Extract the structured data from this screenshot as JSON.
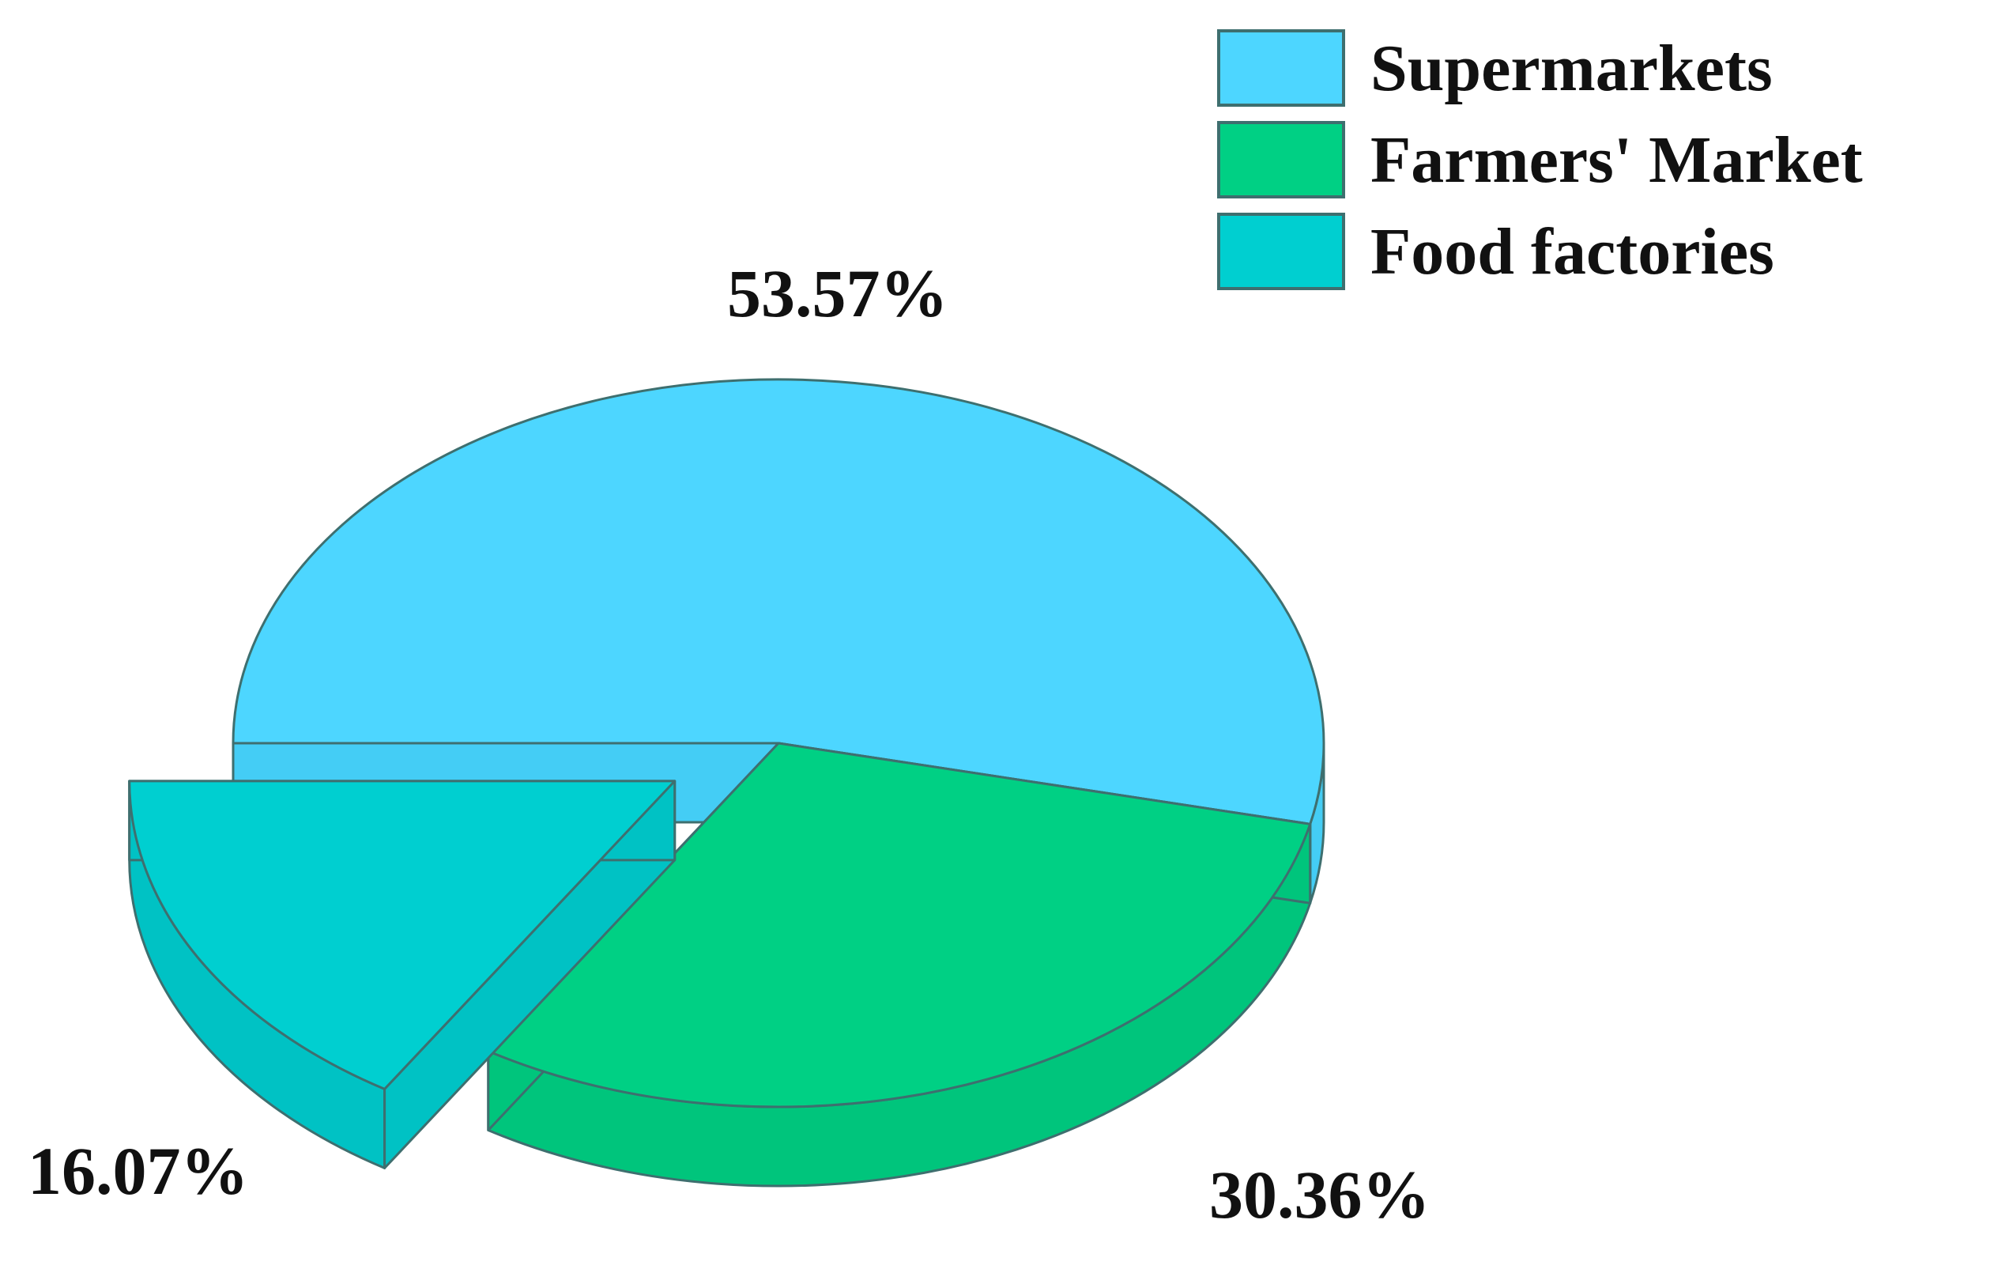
{
  "chart_data": {
    "type": "pie",
    "style": "3d-exploded",
    "slices": [
      {
        "label": "Supermarkets",
        "value": 53.57,
        "value_label": "53.57%",
        "color": "#4dd6ff",
        "side_color": "#44cdf5",
        "exploded": false
      },
      {
        "label": "Farmers' Market",
        "value": 30.36,
        "value_label": "30.36%",
        "color": "#00d084",
        "side_color": "#00c57c",
        "exploded": false
      },
      {
        "label": "Food factories",
        "value": 16.07,
        "value_label": "16.07%",
        "color": "#00cfd0",
        "side_color": "#00c2c4",
        "exploded": true
      }
    ],
    "legend_placement": "top-right",
    "title": "",
    "edge_color": "#3e6f6f"
  }
}
